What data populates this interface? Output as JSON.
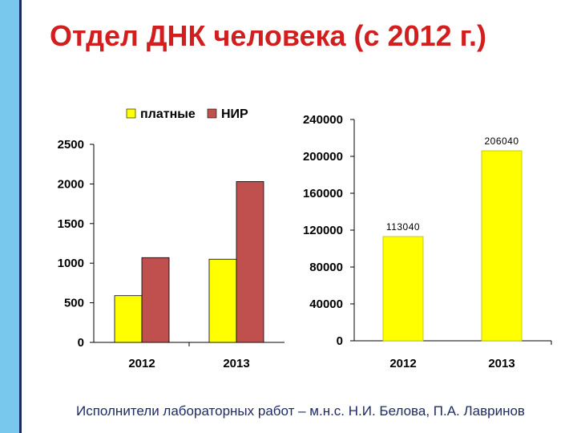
{
  "slide": {
    "title": "Отдел ДНК человека (с 2012 г.)",
    "footer": "Исполнители лабораторных работ – м.н.с. Н.И. Белова, П.А. Лавринов"
  },
  "colors": {
    "accent_sidebar": "#77c8ec",
    "title": "#d21e1e",
    "series_paid": "#ffff00",
    "series_nir": "#c0504d"
  },
  "chart_data": [
    {
      "type": "bar",
      "categories": [
        "2012",
        "2013"
      ],
      "series": [
        {
          "name": "платные",
          "color": "#ffff00",
          "values": [
            590,
            1050
          ]
        },
        {
          "name": "НИР",
          "color": "#c0504d",
          "values": [
            1070,
            2030
          ]
        }
      ],
      "ylim": [
        0,
        2500
      ],
      "yticks": [
        "0",
        "500",
        "1000",
        "1500",
        "2000",
        "2500"
      ],
      "legend": "top"
    },
    {
      "type": "bar",
      "categories": [
        "2012",
        "2013"
      ],
      "series": [
        {
          "color": "#ffff00",
          "values": [
            113040,
            206040
          ],
          "labels": [
            "113040",
            "206040"
          ]
        }
      ],
      "ylim": [
        0,
        240000
      ],
      "yticks": [
        "0",
        "40000",
        "80000",
        "120000",
        "160000",
        "200000",
        "240000"
      ]
    }
  ]
}
